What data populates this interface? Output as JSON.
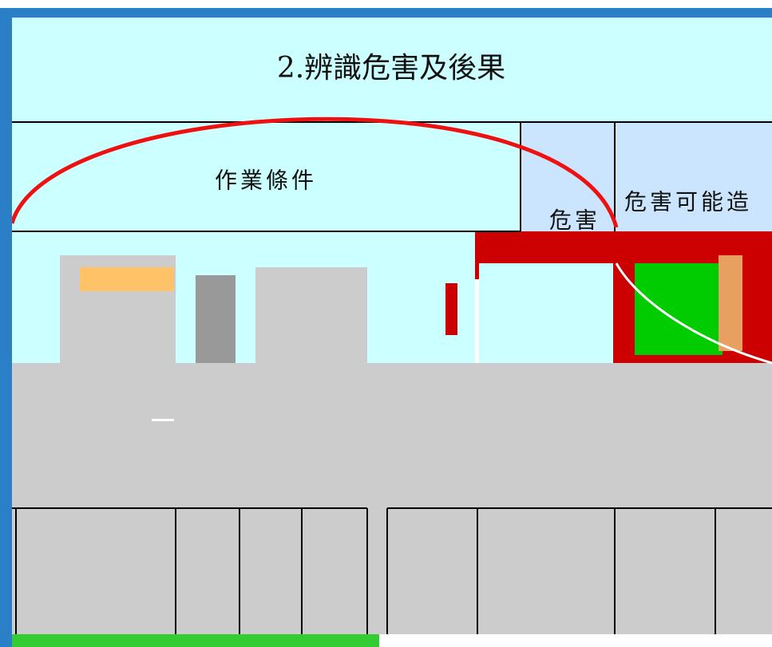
{
  "table": {
    "title": "2.辨識危害及後果",
    "headers": [
      "作業條件",
      "危害",
      "危害可能造"
    ]
  }
}
